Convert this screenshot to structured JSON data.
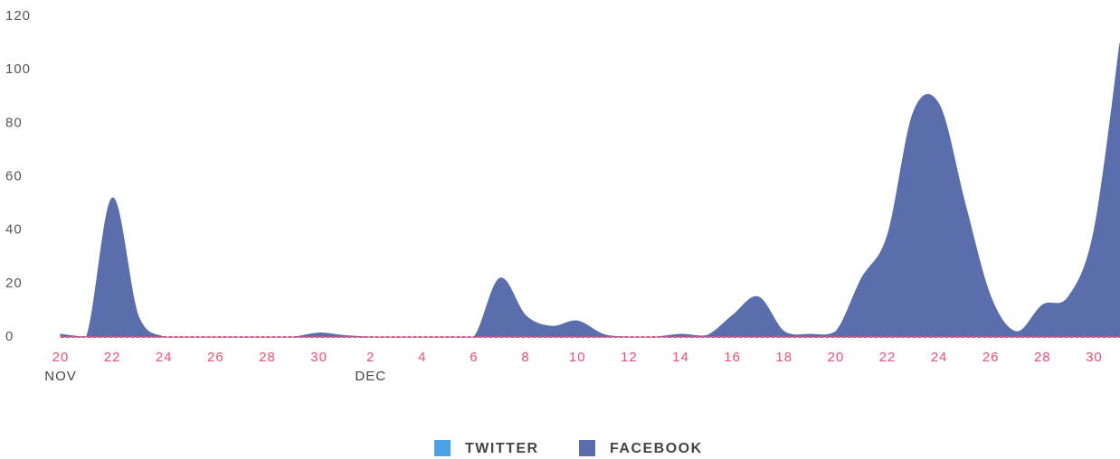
{
  "chart_data": {
    "type": "area",
    "categories": [
      "20",
      null,
      "22",
      null,
      "24",
      null,
      "26",
      null,
      "28",
      null,
      "30",
      null,
      "2",
      null,
      "4",
      null,
      "6",
      null,
      "8",
      null,
      "10",
      null,
      "12",
      null,
      "14",
      null,
      "16",
      null,
      "18",
      null,
      "20",
      null,
      "22",
      null,
      "24",
      null,
      "26",
      null,
      "28",
      null,
      "30",
      null
    ],
    "months": [
      "NOV",
      "DEC"
    ],
    "series": [
      {
        "name": "TWITTER",
        "color": "#4aa3e8",
        "values": [
          0,
          0,
          0,
          0,
          0,
          0,
          0,
          0,
          0,
          0,
          0,
          0,
          0,
          0,
          0,
          0,
          0,
          0,
          0,
          0,
          0,
          0,
          0,
          0,
          0,
          0,
          0,
          0,
          0,
          0,
          0,
          0,
          0,
          0,
          0,
          0,
          0,
          0,
          0,
          0,
          0,
          0
        ]
      },
      {
        "name": "FACEBOOK",
        "color": "#5a6eae",
        "values": [
          1,
          0,
          52,
          8,
          0,
          0,
          0,
          0,
          0,
          0,
          1.5,
          0.5,
          0,
          0,
          0,
          0,
          0,
          22,
          8,
          4,
          6,
          1,
          0,
          0,
          1,
          0.5,
          8,
          15,
          2,
          1,
          2,
          22,
          38,
          84,
          87,
          50,
          15,
          2,
          12,
          15,
          40,
          110
        ]
      }
    ],
    "ylim": [
      0,
      120
    ],
    "yticks": [
      0,
      20,
      40,
      60,
      80,
      100,
      120
    ],
    "grid": false
  }
}
